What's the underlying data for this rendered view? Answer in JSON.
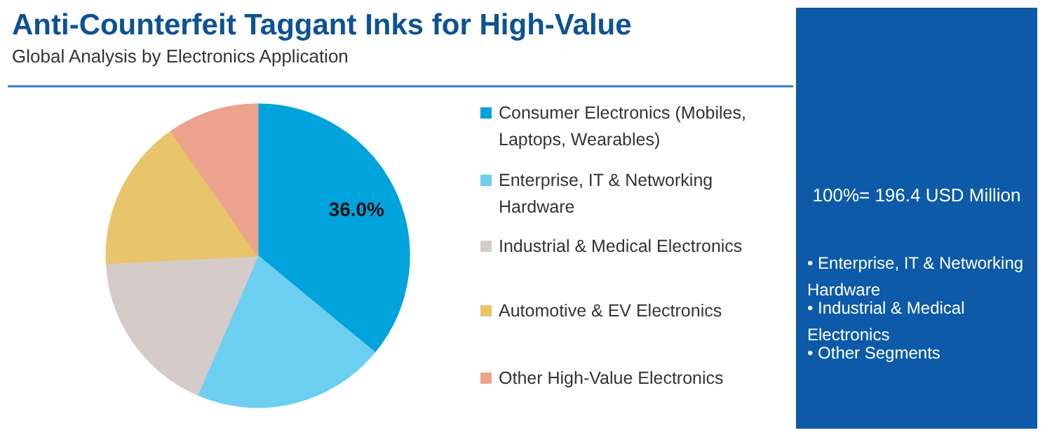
{
  "chart_data": {
    "type": "pie",
    "title": "Anti-Counterfeit Taggant Inks for High-Value",
    "subtitle": "Global Analysis by Electronics Application",
    "categories": [
      "Consumer Electronics (Mobiles, Laptops, Wearables)",
      "Enterprise, IT & Networking Hardware",
      "Industrial & Medical Electronics",
      "Automotive & EV Electronics",
      "Other High-Value Electronics"
    ],
    "values": [
      36.0,
      20.5,
      17.7,
      16.1,
      9.7
    ],
    "colors": [
      "#00a3dc",
      "#6ccff0",
      "#d5cbc8",
      "#e8c46a",
      "#eba38e"
    ],
    "value_labels": [
      "36.0%",
      null,
      null,
      null,
      null
    ],
    "legend": "right",
    "annotations": [
      "100%= 196.4 USD Million",
      "• Enterprise, IT & Networking Hardware",
      "• Industrial & Medical Electronics",
      "• Other Segments"
    ]
  }
}
